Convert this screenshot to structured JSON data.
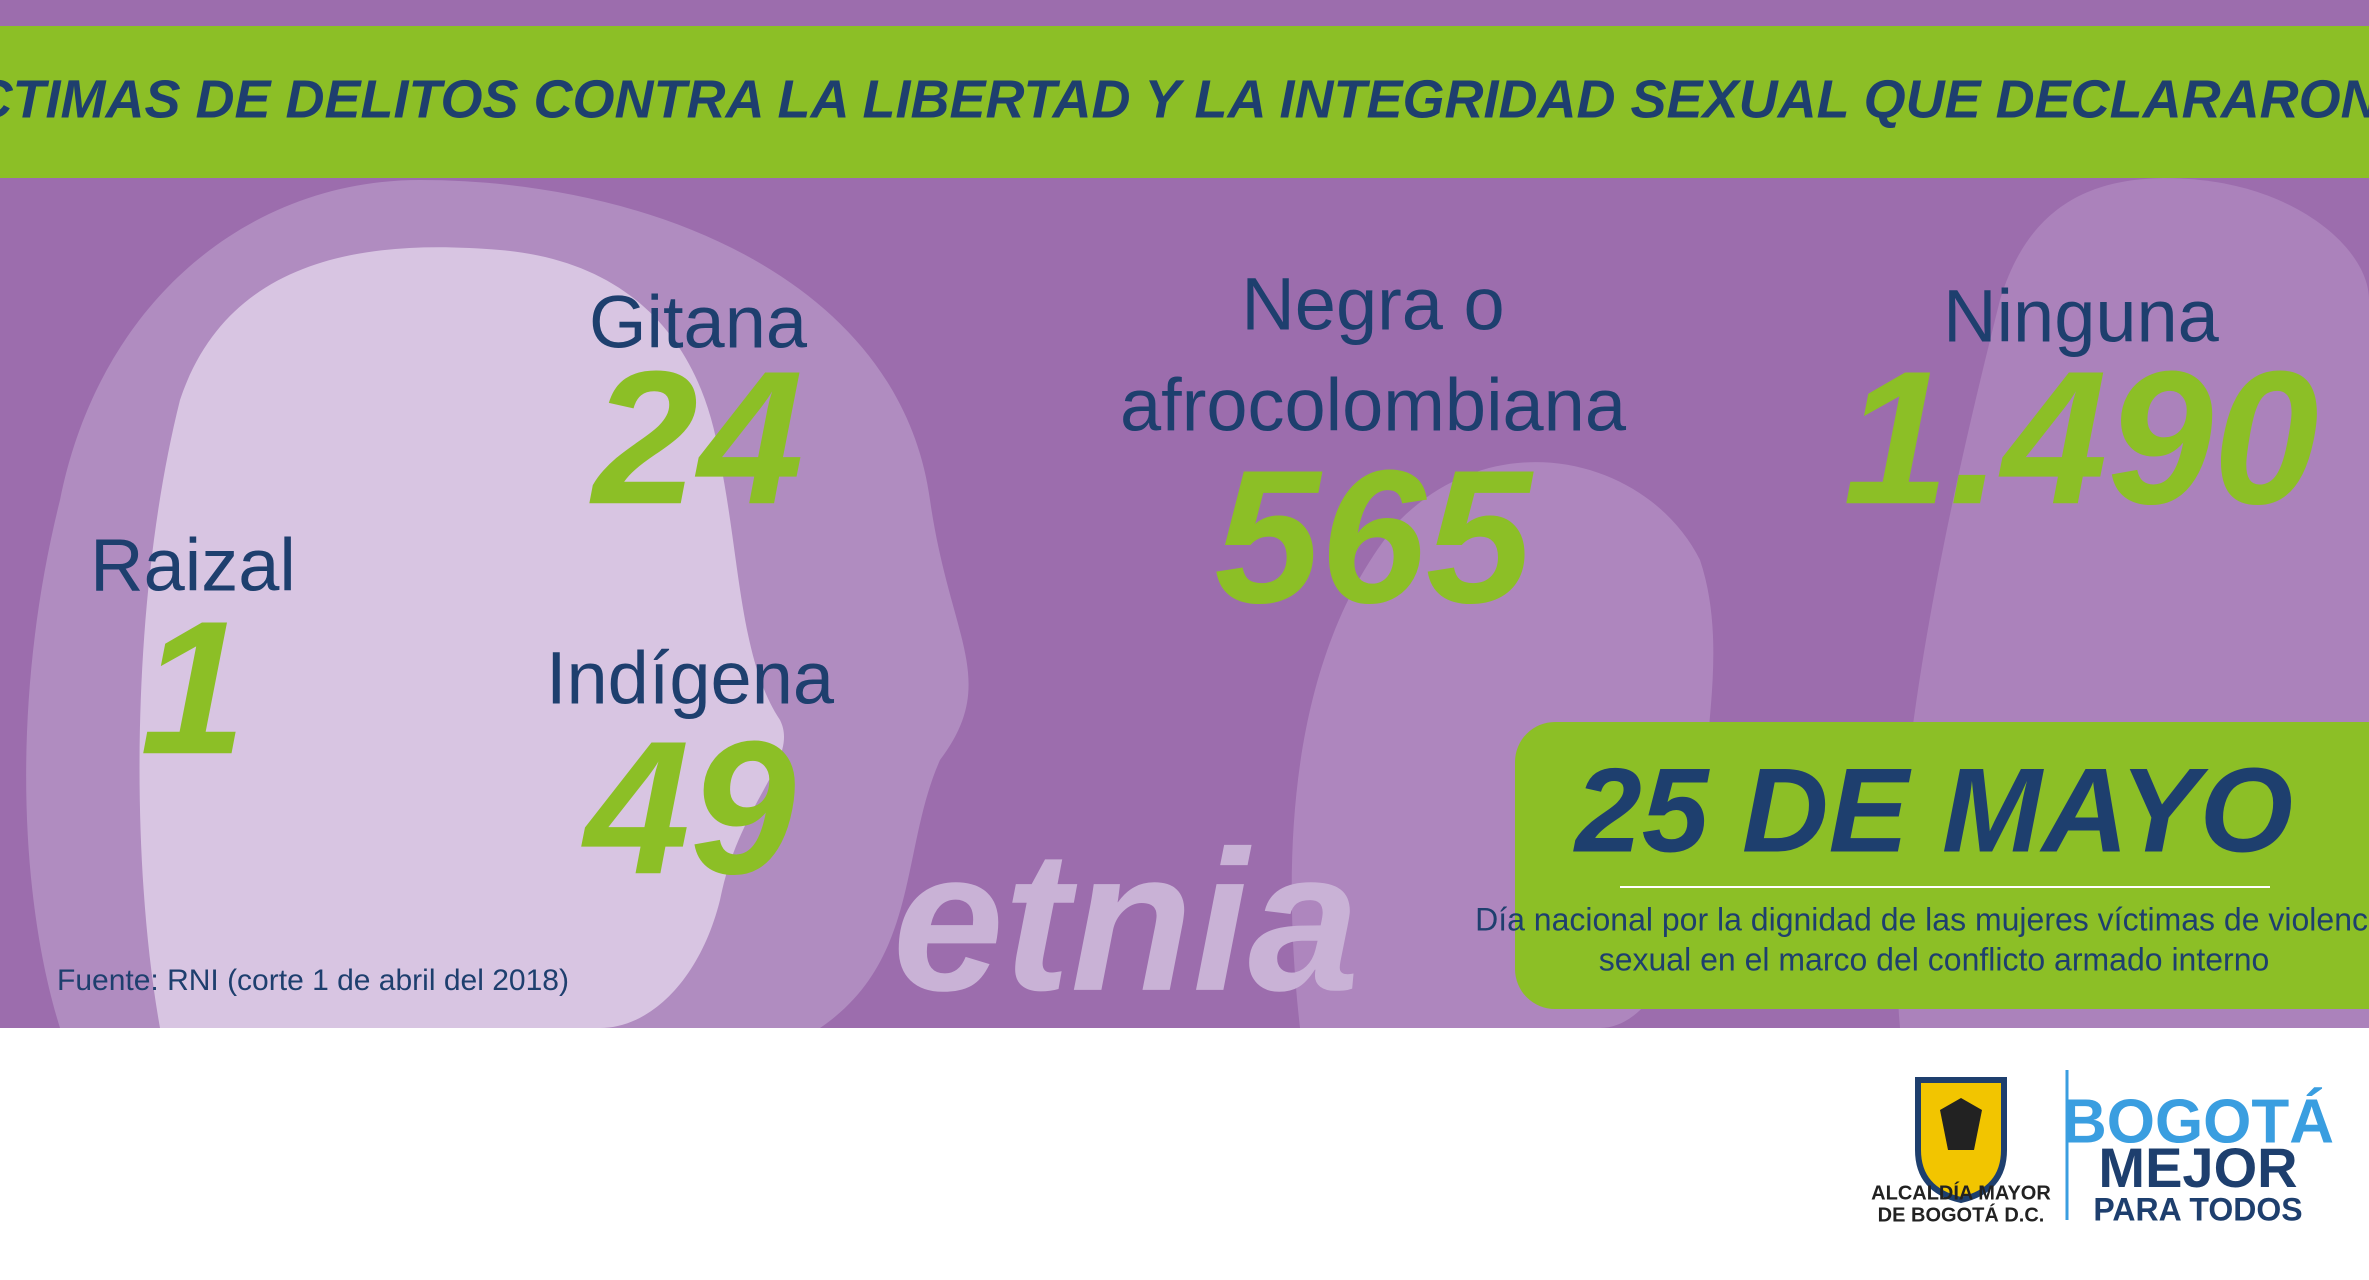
{
  "header": {
    "title": "MUJERES VÍCTIMAS DE DELITOS CONTRA LA LIBERTAD Y LA INTEGRIDAD SEXUAL QUE DECLARARON EN BOGOTÁ"
  },
  "groups": [
    {
      "label": [
        "Raizal"
      ],
      "value": "1"
    },
    {
      "label": [
        "Gitana"
      ],
      "value": "24"
    },
    {
      "label": [
        "Indígena"
      ],
      "value": "49"
    },
    {
      "label": [
        "Negra o",
        "afrocolombiana"
      ],
      "value": "565"
    },
    {
      "label": [
        "Ninguna"
      ],
      "value": "1.490"
    }
  ],
  "watermark": "etnia",
  "source": "Fuente: RNI (corte 1 de abril del 2018)",
  "date_box": {
    "title": "25 DE MAYO",
    "description": [
      "Día nacional por la dignidad de las mujeres víctimas de violencia",
      "sexual en el marco del conflicto armado interno"
    ]
  },
  "logos": {
    "alcaldia": [
      "ALCALDÍA MAYOR",
      "DE BOGOTÁ D.C."
    ],
    "bogota": [
      "BOGOTÁ",
      "MEJOR",
      "PARA TODOS"
    ]
  }
}
